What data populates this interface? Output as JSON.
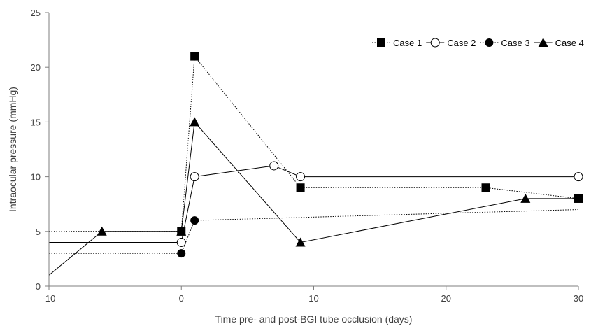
{
  "chart_data": {
    "type": "line",
    "title": "",
    "xlabel": "Time pre- and post-BGI tube occlusion (days)",
    "ylabel": "Intraocular pressure (mmHg)",
    "xlim": [
      -10,
      30
    ],
    "ylim": [
      0,
      25
    ],
    "xticks": [
      -10,
      0,
      10,
      20,
      30
    ],
    "yticks": [
      0,
      5,
      10,
      15,
      20,
      25
    ],
    "grid": false,
    "legend_position": "top-right",
    "series": [
      {
        "name": "Case 1",
        "marker": "square-filled",
        "line": "dotted",
        "color": "#000000",
        "points": [
          [
            -10,
            5
          ],
          [
            0,
            5
          ],
          [
            1,
            21
          ],
          [
            9,
            9
          ],
          [
            23,
            9
          ],
          [
            30,
            8
          ]
        ]
      },
      {
        "name": "Case 2",
        "marker": "circle-open",
        "line": "solid",
        "color": "#000000",
        "points": [
          [
            -10,
            4
          ],
          [
            0,
            4
          ],
          [
            1,
            10
          ],
          [
            7,
            11
          ],
          [
            9,
            10
          ],
          [
            30,
            10
          ]
        ]
      },
      {
        "name": "Case 3",
        "marker": "circle-filled",
        "line": "dotted",
        "color": "#000000",
        "points": [
          [
            -10,
            3
          ],
          [
            0,
            3
          ],
          [
            1,
            6
          ],
          [
            30,
            7
          ]
        ]
      },
      {
        "name": "Case 4",
        "marker": "triangle-filled",
        "line": "solid",
        "color": "#000000",
        "points": [
          [
            -10,
            1
          ],
          [
            -6,
            5
          ],
          [
            0,
            5
          ],
          [
            1,
            15
          ],
          [
            9,
            4
          ],
          [
            26,
            8
          ],
          [
            30,
            8
          ]
        ]
      }
    ],
    "unmarked_points": [
      {
        "series": "Case 1",
        "x": -10
      },
      {
        "series": "Case 2",
        "x": -10
      },
      {
        "series": "Case 3",
        "x": -10
      },
      {
        "series": "Case 3",
        "x": 30
      },
      {
        "series": "Case 4",
        "x": -10
      }
    ]
  }
}
